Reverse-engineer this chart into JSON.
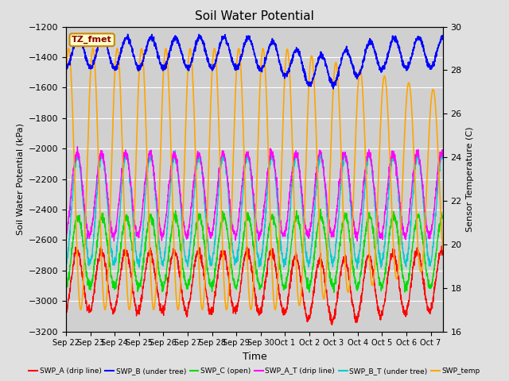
{
  "title": "Soil Water Potential",
  "xlabel": "Time",
  "ylabel_left": "Soil Water Potential (kPa)",
  "ylabel_right": "Sensor Temperature (C)",
  "ylim_left": [
    -3200,
    -1200
  ],
  "ylim_right": [
    16,
    30
  ],
  "yticks_left": [
    -3200,
    -3000,
    -2800,
    -2600,
    -2400,
    -2200,
    -2000,
    -1800,
    -1600,
    -1400,
    -1200
  ],
  "yticks_right": [
    16,
    18,
    20,
    22,
    24,
    26,
    28,
    30
  ],
  "tz_label": "TZ_fmet",
  "bg_color": "#e0e0e0",
  "plot_bg_color": "#d0d0d0",
  "colors": {
    "SWP_A": "#ff0000",
    "SWP_B": "#0000ff",
    "SWP_C": "#00dd00",
    "SWP_A_T": "#ff00ff",
    "SWP_B_T": "#00cccc",
    "SWP_temp": "#ffa500"
  },
  "legend_entries": [
    {
      "label": "SWP_A (drip line)",
      "color": "#ff0000"
    },
    {
      "label": "SWP_B (under tree)",
      "color": "#0000ff"
    },
    {
      "label": "SWP_C (open)",
      "color": "#00dd00"
    },
    {
      "label": "SWP_A_T (drip line)",
      "color": "#ff00ff"
    },
    {
      "label": "SWP_B_T (under tree)",
      "color": "#00cccc"
    },
    {
      "label": "SWP_temp",
      "color": "#ffa500"
    }
  ],
  "n_days": 15.5,
  "date_labels": [
    "Sep 22",
    "Sep 23",
    "Sep 24",
    "Sep 25",
    "Sep 26",
    "Sep 27",
    "Sep 28",
    "Sep 29",
    "Sep 30",
    "Oct 1",
    "Oct 2",
    "Oct 3",
    "Oct 4",
    "Oct 5",
    "Oct 6",
    "Oct 7"
  ],
  "figsize": [
    6.4,
    4.8
  ],
  "dpi": 100
}
